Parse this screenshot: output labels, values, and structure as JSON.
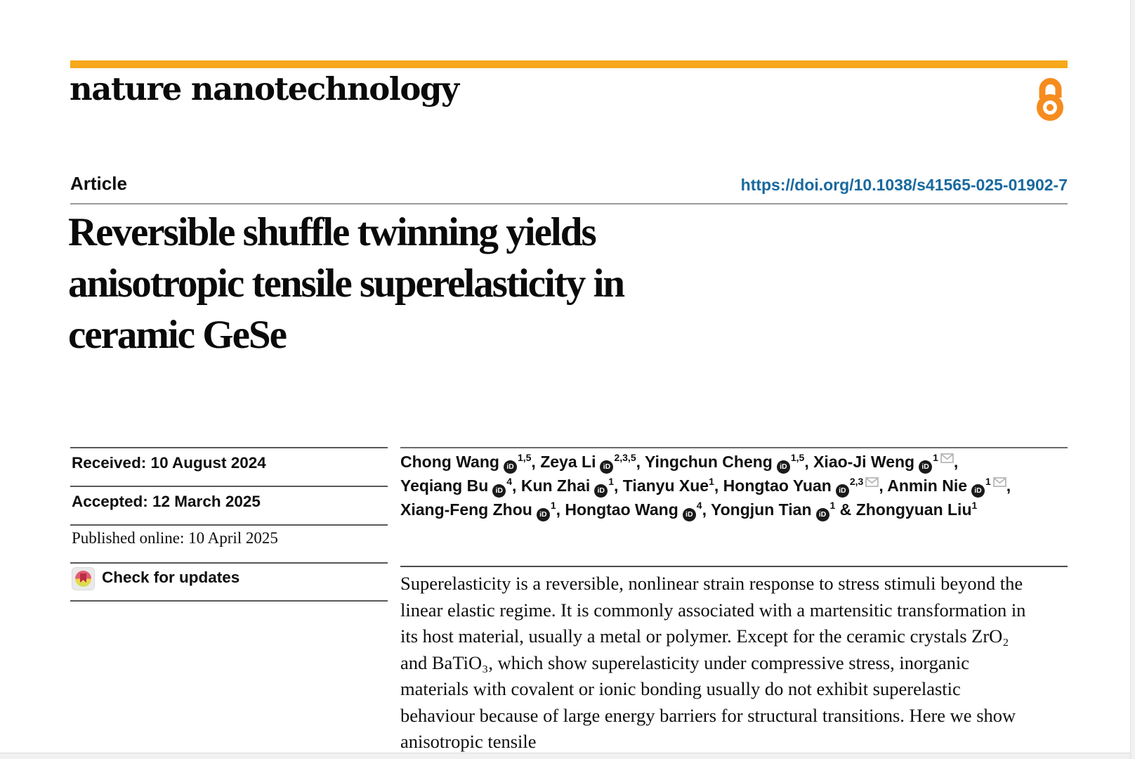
{
  "masthead": {
    "journal_name": "nature nanotechnology",
    "accent_color": "#F7A81C"
  },
  "icons": {
    "open_access": "open-access-lock-icon",
    "orcid": "orcid-id-icon",
    "email": "envelope-icon",
    "crossmark": "crossmark-bookmark-icon"
  },
  "header": {
    "article_label": "Article",
    "doi": "https://doi.org/10.1038/s41565-025-01902-7",
    "doi_color": "#19699E"
  },
  "title_lines": [
    "Reversible shuffle twinning yields",
    "anisotropic tensile superelasticity in",
    "ceramic GeSe"
  ],
  "sidebar_meta": {
    "received": "Received: 10 August 2024",
    "accepted": "Accepted: 12 March 2025",
    "published": "Published online: 10 April 2025",
    "check_updates": "Check for updates"
  },
  "authors": {
    "orcid_text": "iD",
    "list": [
      {
        "name": "Chong Wang",
        "orcid": true,
        "sup": "1,5",
        "email": false,
        "sep": ", "
      },
      {
        "name": "Zeya Li",
        "orcid": true,
        "sup": "2,3,5",
        "email": false,
        "sep": ", "
      },
      {
        "name": "Yingchun Cheng",
        "orcid": true,
        "sup": "1,5",
        "email": false,
        "sep": ", "
      },
      {
        "name": "Xiao-Ji Weng",
        "orcid": true,
        "sup": "1",
        "email": true,
        "sep": ", "
      },
      {
        "name": "Yeqiang Bu",
        "orcid": true,
        "sup": "4",
        "email": false,
        "sep": ", "
      },
      {
        "name": "Kun Zhai",
        "orcid": true,
        "sup": "1",
        "email": false,
        "sep": ", "
      },
      {
        "name": "Tianyu Xue",
        "orcid": false,
        "sup": "1",
        "email": false,
        "sep": ", "
      },
      {
        "name": "Hongtao Yuan",
        "orcid": true,
        "sup": "2,3",
        "email": true,
        "sep": ", "
      },
      {
        "name": "Anmin Nie",
        "orcid": true,
        "sup": "1",
        "email": true,
        "sep": ", "
      },
      {
        "name": "Xiang-Feng Zhou",
        "orcid": true,
        "sup": "1",
        "email": false,
        "sep": ", "
      },
      {
        "name": "Hongtao Wang",
        "orcid": true,
        "sup": "4",
        "email": false,
        "sep": ", "
      },
      {
        "name": "Yongjun Tian",
        "orcid": true,
        "sup": "1",
        "email": false,
        "sep": " & "
      },
      {
        "name": "Zhongyuan Liu",
        "orcid": false,
        "sup": "1",
        "email": false,
        "sep": ""
      }
    ]
  },
  "abstract": {
    "text": "Superelasticity is a reversible, nonlinear strain response to stress stimuli beyond the linear elastic regime. It is commonly associated with a martensitic transformation in its host material, usually a metal or polymer. Except for the ceramic crystals ZrO₂ and BaTiO₃, which show superelasticity under compressive stress, inorganic materials with covalent or ionic bonding usually do not exhibit superelastic behaviour because of large energy barriers for structural transitions. Here we show anisotropic tensile"
  }
}
